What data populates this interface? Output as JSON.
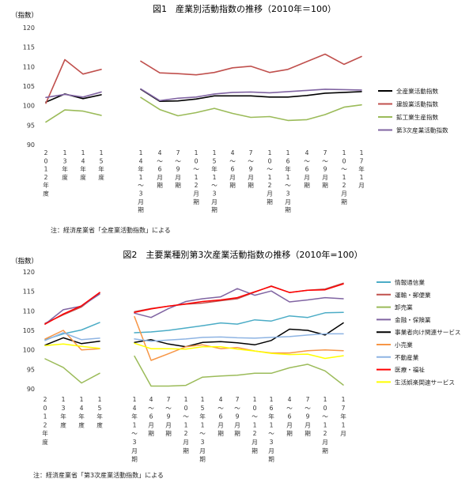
{
  "chart_data": [
    {
      "type": "line",
      "title": "図1　産業別活動指数の推移（2010年＝100）",
      "y_unit": "（指数）",
      "ylim": [
        90,
        120
      ],
      "y_ticks": [
        90,
        95,
        100,
        105,
        110,
        115,
        120
      ],
      "grid": false,
      "legend_position": "right",
      "note": "注：経済産業省「全産業活動指数」による",
      "x_labels": [
        [
          "2",
          "0",
          "1",
          "2",
          "年",
          "度"
        ],
        [
          "1",
          "3",
          "年",
          "度"
        ],
        [
          "1",
          "4",
          "年",
          "度"
        ],
        [
          "1",
          "5",
          "年",
          "度"
        ],
        [
          "1",
          "4",
          "年",
          "1",
          "〜",
          "3",
          "月",
          "期"
        ],
        [
          "4",
          "〜",
          "6",
          "月",
          "期"
        ],
        [
          "7",
          "〜",
          "9",
          "月",
          "期"
        ],
        [
          "1",
          "0",
          "〜",
          "1",
          "2",
          "月",
          "期"
        ],
        [
          "1",
          "5",
          "年",
          "1",
          "〜",
          "3",
          "月",
          "期"
        ],
        [
          "4",
          "〜",
          "6",
          "月",
          "期"
        ],
        [
          "7",
          "〜",
          "9",
          "月",
          "期"
        ],
        [
          "1",
          "0",
          "〜",
          "1",
          "2",
          "月",
          "期"
        ],
        [
          "1",
          "6",
          "年",
          "1",
          "〜",
          "3",
          "月",
          "期"
        ],
        [
          "4",
          "〜",
          "6",
          "月",
          "期"
        ],
        [
          "7",
          "〜",
          "9",
          "月",
          "期"
        ],
        [
          "1",
          "0",
          "〜",
          "1",
          "2",
          "月",
          "期"
        ],
        [
          "1",
          "7",
          "年",
          "1",
          "月"
        ]
      ],
      "groups": [
        [
          0,
          3
        ],
        [
          4,
          16
        ]
      ],
      "series": [
        {
          "name": "全産業活動指数",
          "color": "#000000",
          "values": [
            100.9,
            103.0,
            101.8,
            102.8,
            104.2,
            101.1,
            101.2,
            101.7,
            102.5,
            102.5,
            102.5,
            102.2,
            102.2,
            102.6,
            103.2,
            103.4,
            103.6
          ]
        },
        {
          "name": "建設業活動指数",
          "color": "#c0504d",
          "values": [
            100.6,
            111.8,
            108.1,
            109.3,
            111.4,
            108.4,
            108.2,
            107.9,
            108.5,
            109.7,
            110.1,
            108.5,
            109.3,
            111.3,
            113.2,
            110.6,
            112.6
          ]
        },
        {
          "name": "鉱工業生産指数",
          "color": "#9bbb59",
          "values": [
            95.8,
            98.9,
            98.6,
            97.5,
            102.1,
            99.0,
            97.4,
            98.2,
            99.3,
            98.0,
            97.0,
            97.2,
            96.2,
            96.4,
            97.7,
            99.6,
            100.2
          ]
        },
        {
          "name": "第3次産業活動指数",
          "color": "#8064a2",
          "values": [
            102.1,
            102.9,
            102.2,
            103.5,
            104.3,
            101.3,
            101.9,
            102.2,
            103.0,
            103.4,
            103.5,
            103.3,
            103.6,
            103.9,
            104.2,
            104.1,
            104.0
          ]
        }
      ]
    },
    {
      "type": "line",
      "title": "図2　主要業種別第3次産業活動指数の推移（2010年=100）",
      "y_unit": "（指数）",
      "ylim": [
        90,
        120
      ],
      "y_ticks": [
        90,
        95,
        100,
        105,
        110,
        115,
        120
      ],
      "grid": false,
      "legend_position": "right",
      "note": "注：経済産業省「第3次産業活動指数」による",
      "x_labels": [
        [
          "2",
          "0",
          "1",
          "2",
          "年",
          "度"
        ],
        [
          "1",
          "3",
          "年",
          "度"
        ],
        [
          "1",
          "4",
          "年",
          "度"
        ],
        [
          "1",
          "5",
          "年",
          "度"
        ],
        [
          "1",
          "4",
          "年",
          "1",
          "〜",
          "3",
          "月",
          "期"
        ],
        [
          "4",
          "〜",
          "6",
          "月",
          "期"
        ],
        [
          "7",
          "〜",
          "9",
          "月",
          "期"
        ],
        [
          "1",
          "0",
          "〜",
          "1",
          "2",
          "月",
          "期"
        ],
        [
          "1",
          "5",
          "年",
          "1",
          "〜",
          "3",
          "月",
          "期"
        ],
        [
          "4",
          "〜",
          "6",
          "月",
          "期"
        ],
        [
          "7",
          "〜",
          "9",
          "月",
          "期"
        ],
        [
          "1",
          "0",
          "〜",
          "1",
          "2",
          "月",
          "期"
        ],
        [
          "1",
          "6",
          "年",
          "1",
          "〜",
          "3",
          "月",
          "期"
        ],
        [
          "4",
          "〜",
          "6",
          "月",
          "期"
        ],
        [
          "7",
          "〜",
          "9",
          "月",
          "期"
        ],
        [
          "1",
          "0",
          "〜",
          "1",
          "2",
          "月",
          "期"
        ],
        [
          "1",
          "7",
          "年",
          "1",
          "月"
        ]
      ],
      "groups": [
        [
          0,
          3
        ],
        [
          4,
          16
        ]
      ],
      "series": [
        {
          "name": "情報通信業",
          "color": "#4bacc6",
          "values": [
            102.6,
            104.1,
            105.1,
            107.0,
            104.4,
            104.6,
            105.0,
            105.6,
            106.2,
            106.9,
            106.6,
            107.7,
            107.4,
            108.7,
            108.3,
            109.5,
            109.6
          ]
        },
        {
          "name": "運輸・郵便業",
          "color": "#c0504d",
          "values": [
            106.8,
            109.0,
            111.0,
            114.6,
            109.8,
            110.6,
            111.2,
            111.7,
            112.0,
            112.6,
            113.1,
            114.8,
            116.4,
            114.7,
            115.3,
            115.6,
            117.1
          ]
        },
        {
          "name": "卸売業",
          "color": "#9bbb59",
          "values": [
            97.7,
            95.5,
            91.5,
            94.0,
            98.4,
            90.7,
            90.7,
            90.9,
            93.0,
            93.3,
            93.5,
            94.0,
            94.0,
            95.4,
            96.3,
            94.6,
            91.0
          ]
        },
        {
          "name": "金融・保険業",
          "color": "#8064a2",
          "values": [
            106.6,
            110.3,
            111.2,
            114.3,
            109.4,
            108.3,
            110.6,
            112.4,
            113.1,
            113.6,
            115.7,
            114.0,
            115.1,
            112.3,
            112.8,
            113.4,
            113.1
          ]
        },
        {
          "name": "事業者向け関連サービス",
          "color": "#000000",
          "values": [
            101.2,
            103.1,
            101.6,
            102.2,
            101.9,
            102.6,
            101.5,
            100.8,
            101.9,
            102.1,
            101.8,
            101.3,
            102.4,
            105.3,
            105.0,
            103.8,
            106.9
          ]
        },
        {
          "name": "小売業",
          "color": "#f79646",
          "values": [
            102.8,
            105.0,
            100.0,
            100.3,
            108.5,
            97.3,
            99.0,
            100.8,
            101.3,
            100.3,
            100.6,
            99.7,
            99.2,
            99.2,
            99.8,
            100.0,
            99.8
          ]
        },
        {
          "name": "不動産業",
          "color": "#8eb4e3",
          "values": [
            102.4,
            104.4,
            102.6,
            103.0,
            102.8,
            102.2,
            102.5,
            102.8,
            103.2,
            103.3,
            103.1,
            103.0,
            103.2,
            103.4,
            103.8,
            104.1,
            104.1
          ]
        },
        {
          "name": "医療・福祉",
          "color": "#ff0000",
          "values": [
            106.6,
            109.2,
            111.3,
            114.7,
            109.6,
            110.5,
            111.2,
            111.8,
            112.4,
            112.8,
            113.4,
            114.9,
            116.3,
            114.7,
            115.3,
            115.4,
            116.9
          ]
        },
        {
          "name": "生活娯楽関連サービス",
          "color": "#ffff00",
          "values": [
            101.1,
            101.5,
            100.9,
            100.4,
            101.7,
            100.3,
            100.3,
            100.2,
            100.8,
            100.8,
            100.2,
            99.7,
            99.1,
            98.8,
            98.9,
            97.8,
            98.5
          ]
        }
      ]
    }
  ]
}
